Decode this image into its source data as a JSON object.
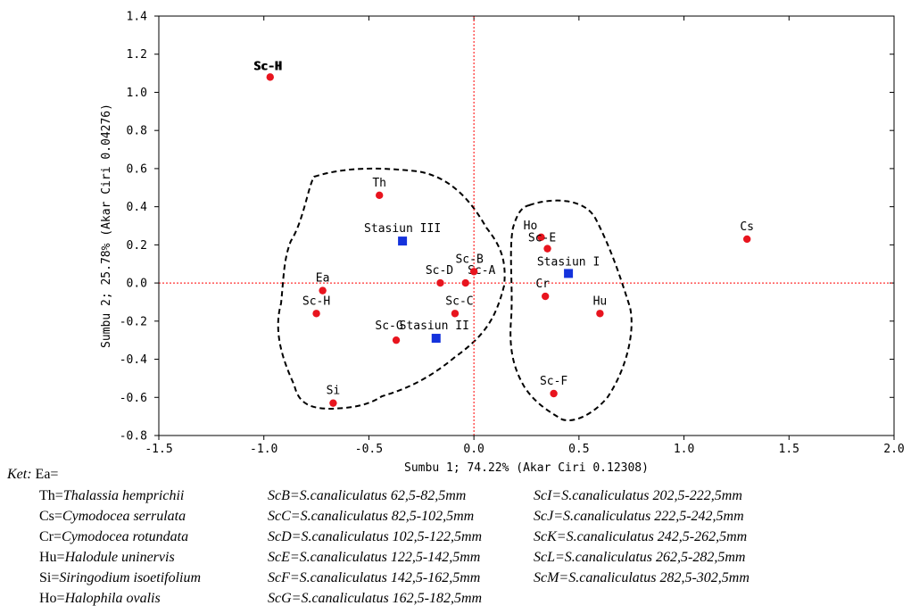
{
  "chart_data": {
    "type": "scatter",
    "xlabel": "Sumbu 1; 74.22% (Akar Ciri 0.12308)",
    "ylabel": "Sumbu 2; 25.78% (Akar Ciri 0.04276)",
    "xlim": [
      -1.5,
      2.0
    ],
    "ylim": [
      -0.8,
      1.4
    ],
    "xticks": [
      "-1.5",
      "-1.0",
      "-0.5",
      "0.0",
      "0.5",
      "1.0",
      "1.5",
      "2.0"
    ],
    "yticks": [
      "1.4",
      "1.2",
      "1.0",
      "0.8",
      "0.6",
      "0.4",
      "0.2",
      "0.0",
      "-0.2",
      "-0.4",
      "-0.6",
      "-0.8"
    ],
    "grid": false,
    "reference_lines": {
      "x": 0.0,
      "y": 0.0,
      "color": "#ff0000",
      "style": "dotted"
    },
    "series": [
      {
        "marker": "circle",
        "color": "#e8141e",
        "points": [
          {
            "label": "Sc-H",
            "x": -0.97,
            "y": 1.08,
            "overlapped": true
          },
          {
            "label": "Th",
            "x": -0.45,
            "y": 0.46
          },
          {
            "label": "Ea",
            "x": -0.72,
            "y": -0.04
          },
          {
            "label": "Sc-H",
            "x": -0.75,
            "y": -0.16
          },
          {
            "label": "Sc-G",
            "x": -0.37,
            "y": -0.3
          },
          {
            "label": "Si",
            "x": -0.67,
            "y": -0.63
          },
          {
            "label": "Sc-D",
            "x": -0.16,
            "y": 0.0
          },
          {
            "label": "Sc-A",
            "x": -0.04,
            "y": 0.0
          },
          {
            "label": "Sc-B",
            "x": 0.0,
            "y": 0.06
          },
          {
            "label": "Sc-C",
            "x": -0.09,
            "y": -0.16
          },
          {
            "label": "Ho",
            "x": 0.32,
            "y": 0.24
          },
          {
            "label": "Sc-E",
            "x": 0.35,
            "y": 0.18
          },
          {
            "label": "Cr",
            "x": 0.34,
            "y": -0.07
          },
          {
            "label": "Hu",
            "x": 0.6,
            "y": -0.16
          },
          {
            "label": "Sc-F",
            "x": 0.38,
            "y": -0.58
          },
          {
            "label": "Cs",
            "x": 1.3,
            "y": 0.23
          }
        ]
      },
      {
        "marker": "square",
        "color": "#1432dc",
        "points": [
          {
            "label": "Stasiun I",
            "x": 0.45,
            "y": 0.05
          },
          {
            "label": "Stasiun II",
            "x": -0.18,
            "y": -0.29
          },
          {
            "label": "Stasiun III",
            "x": -0.34,
            "y": 0.22
          }
        ]
      }
    ],
    "groupings": [
      {
        "members": [
          "Th",
          "Ea",
          "Sc-H",
          "Sc-G",
          "Si",
          "Sc-D",
          "Sc-A",
          "Sc-B",
          "Sc-C",
          "Stasiun II",
          "Stasiun III"
        ],
        "style": "dashed"
      },
      {
        "members": [
          "Ho",
          "Sc-E",
          "Cr",
          "Hu",
          "Sc-F",
          "Stasiun I"
        ],
        "style": "dashed"
      }
    ]
  },
  "legend": {
    "title": "Ket:",
    "ea": "Ea=",
    "rows": [
      [
        {
          "code": "Th=",
          "name": "Thalassia hemprichii"
        },
        {
          "code": "ScB=",
          "name": "S.canaliculatus 62,5-82,5mm"
        },
        {
          "code": "ScI=",
          "name": "S.canaliculatus 202,5-222,5mm"
        }
      ],
      [
        {
          "code": "Cs=",
          "name": "Cymodocea serrulata"
        },
        {
          "code": "ScC=",
          "name": "S.canaliculatus 82,5-102,5mm"
        },
        {
          "code": "ScJ=",
          "name": "S.canaliculatus 222,5-242,5mm"
        }
      ],
      [
        {
          "code": "Cr=",
          "name": "Cymodocea rotundata"
        },
        {
          "code": "ScD=",
          "name": "S.canaliculatus 102,5-122,5mm"
        },
        {
          "code": "ScK=",
          "name": "S.canaliculatus 242,5-262,5mm"
        }
      ],
      [
        {
          "code": "Hu=",
          "name": "Halodule uninervis"
        },
        {
          "code": "ScE=",
          "name": "S.canaliculatus 122,5-142,5mm"
        },
        {
          "code": "ScL=",
          "name": "S.canaliculatus 262,5-282,5mm"
        }
      ],
      [
        {
          "code": "Si=",
          "name": "Siringodium isoetifolium"
        },
        {
          "code": "ScF=",
          "name": "S.canaliculatus 142,5-162,5mm"
        },
        {
          "code": "ScM=",
          "name": "S.canaliculatus 282,5-302,5mm"
        }
      ],
      [
        {
          "code": "Ho=",
          "name": "Halophila ovalis"
        },
        {
          "code": "ScG=",
          "name": "S.canaliculatus 162,5-182,5mm"
        }
      ]
    ]
  }
}
